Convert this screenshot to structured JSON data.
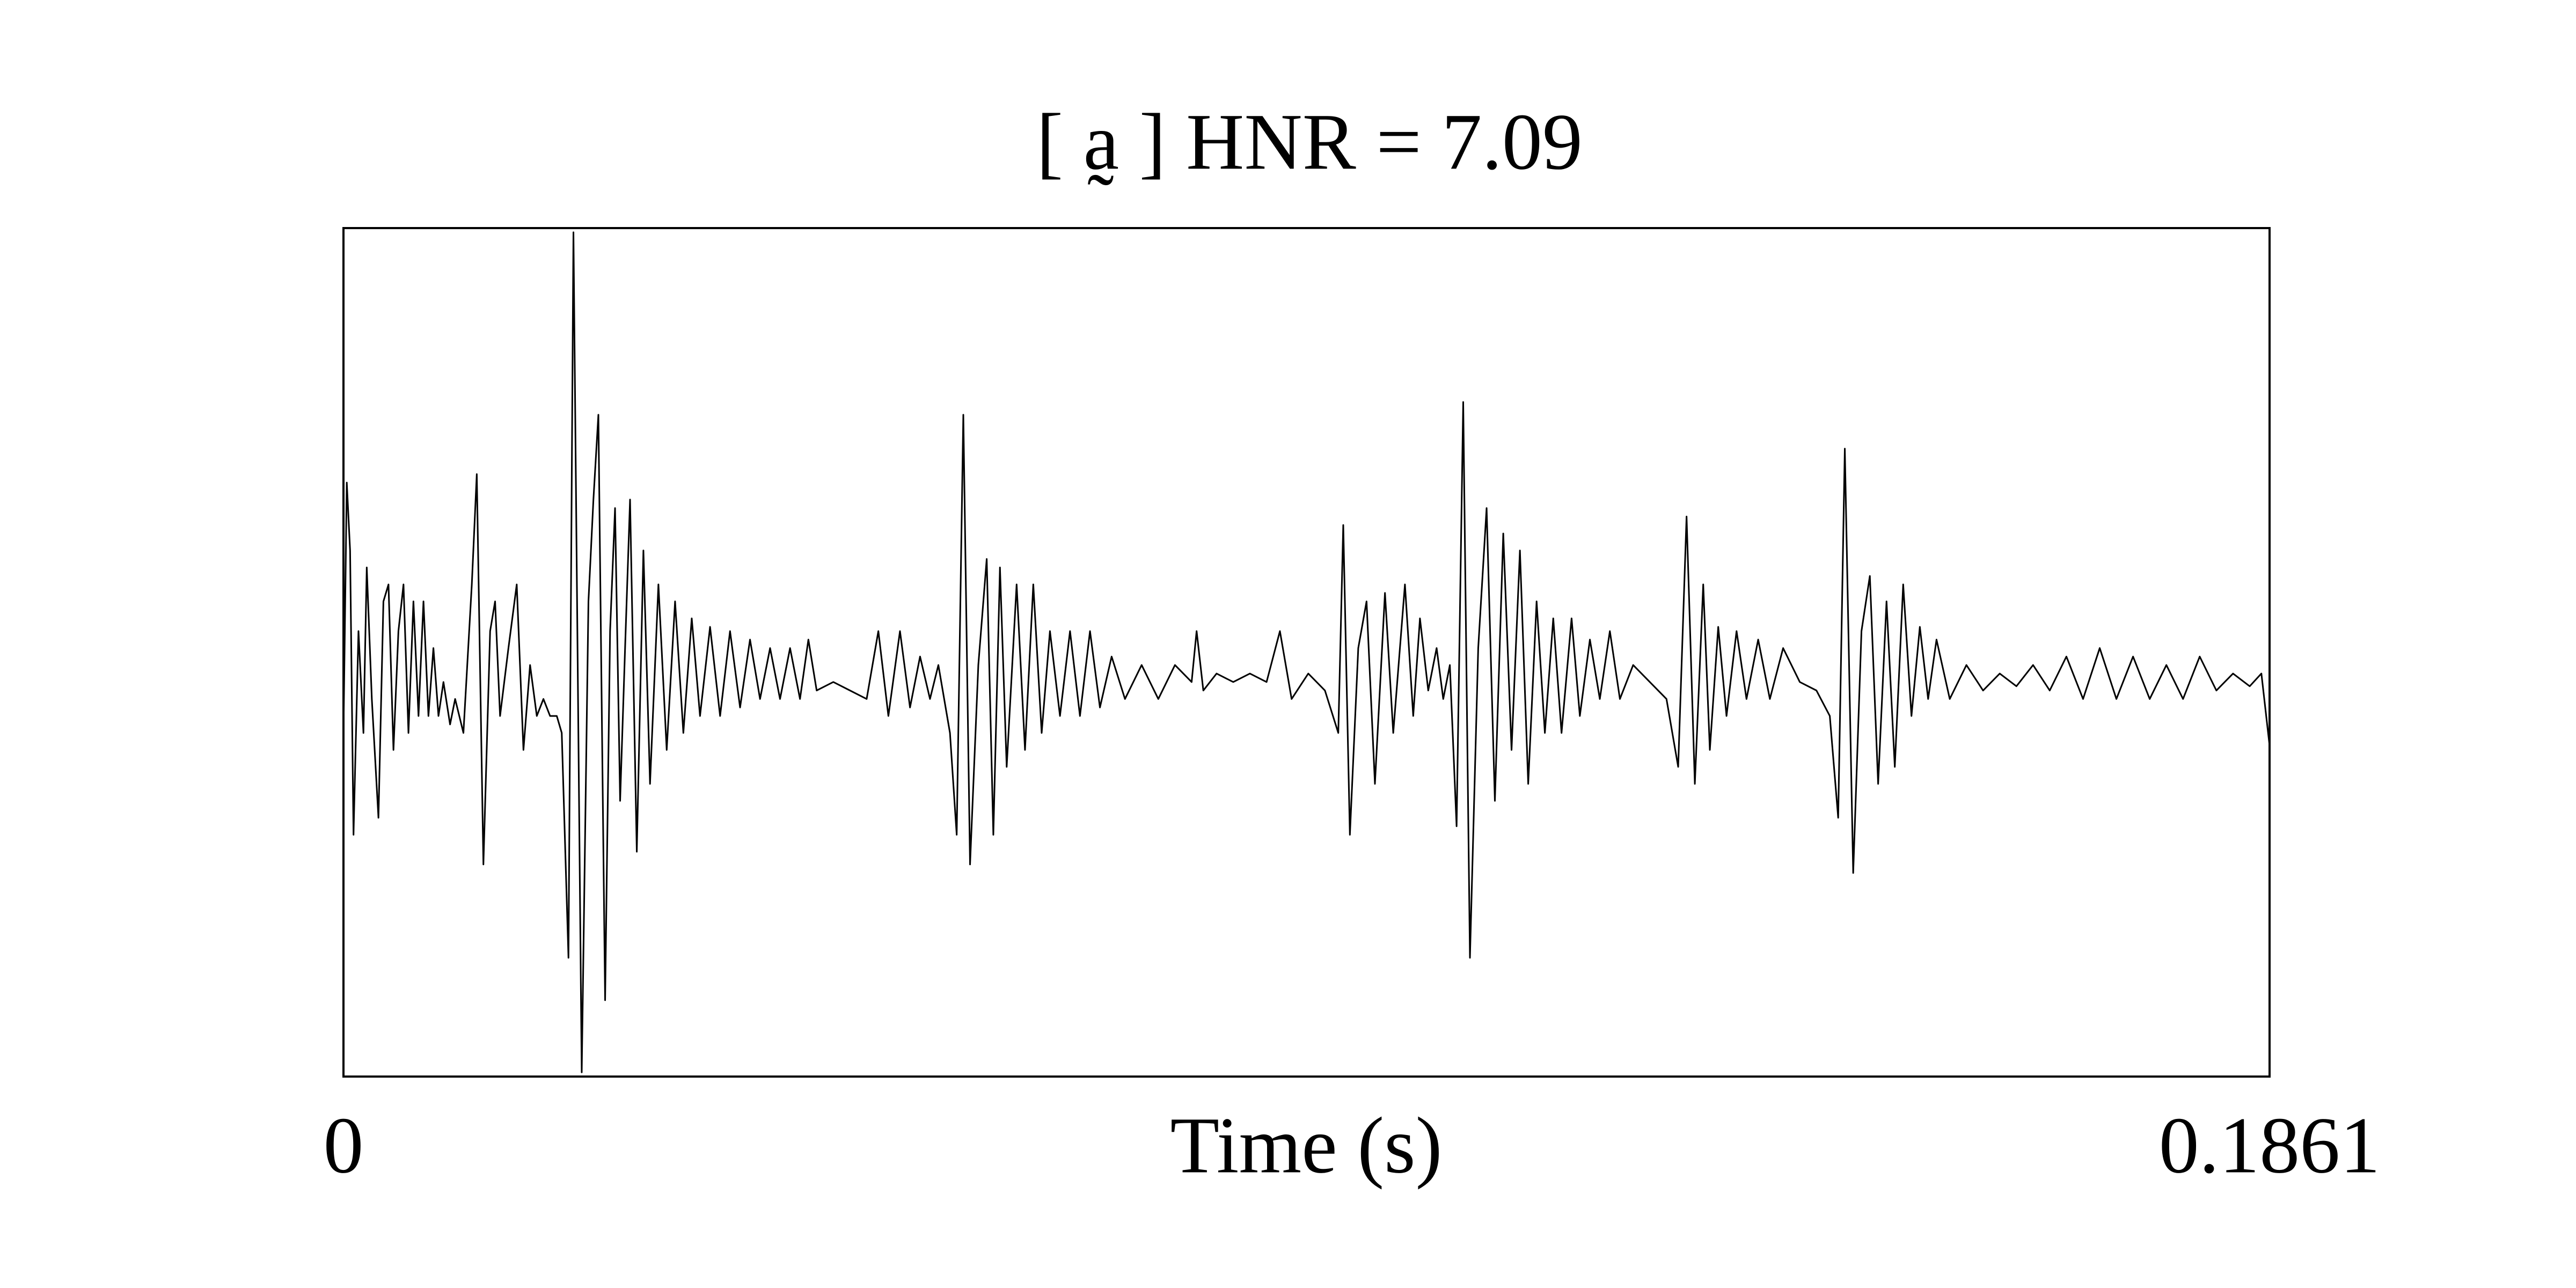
{
  "chart_data": {
    "type": "line",
    "title": "[ a̰ ] HNR = 7.09",
    "x_label": "Time (s)",
    "xlim": [
      0,
      0.1861
    ],
    "xticks": [
      0,
      0.1861
    ],
    "ylim": [
      -1,
      1
    ],
    "color": "#000000",
    "x": [
      0,
      0.00032,
      0.00064,
      0.00097,
      0.00145,
      0.00193,
      0.00225,
      0.00274,
      0.00338,
      0.00386,
      0.00435,
      0.00483,
      0.00531,
      0.0058,
      0.00628,
      0.00676,
      0.00725,
      0.00773,
      0.00821,
      0.00869,
      0.00918,
      0.00966,
      0.0103,
      0.01079,
      0.01159,
      0.0124,
      0.01288,
      0.01352,
      0.01417,
      0.01465,
      0.01513,
      0.01594,
      0.01674,
      0.01739,
      0.01803,
      0.01868,
      0.01932,
      0.01996,
      0.02061,
      0.02109,
      0.02174,
      0.02222,
      0.02302,
      0.02367,
      0.02415,
      0.02463,
      0.02528,
      0.02576,
      0.02624,
      0.02673,
      0.02721,
      0.02769,
      0.02834,
      0.02898,
      0.02962,
      0.03043,
      0.03123,
      0.03204,
      0.03284,
      0.03365,
      0.03445,
      0.03542,
      0.03639,
      0.03735,
      0.03832,
      0.03928,
      0.04025,
      0.04122,
      0.04218,
      0.04315,
      0.04411,
      0.04492,
      0.04572,
      0.04733,
      0.04894,
      0.05055,
      0.05168,
      0.05265,
      0.05377,
      0.05474,
      0.05571,
      0.05667,
      0.05748,
      0.0586,
      0.05925,
      0.05989,
      0.06054,
      0.06134,
      0.06215,
      0.06279,
      0.06343,
      0.06408,
      0.06504,
      0.06585,
      0.06665,
      0.06746,
      0.06826,
      0.06923,
      0.0702,
      0.07116,
      0.07213,
      0.07309,
      0.07422,
      0.07551,
      0.07712,
      0.07873,
      0.08034,
      0.08195,
      0.08243,
      0.08308,
      0.08436,
      0.08597,
      0.08758,
      0.08919,
      0.09048,
      0.09161,
      0.09322,
      0.09483,
      0.09612,
      0.0966,
      0.09724,
      0.09805,
      0.09885,
      0.09966,
      0.10063,
      0.10143,
      0.10256,
      0.10336,
      0.10401,
      0.10481,
      0.10562,
      0.10626,
      0.1069,
      0.10755,
      0.10819,
      0.10884,
      0.10964,
      0.11045,
      0.11125,
      0.11206,
      0.11286,
      0.11367,
      0.11447,
      0.11528,
      0.11608,
      0.11689,
      0.11769,
      0.11866,
      0.11946,
      0.12043,
      0.12139,
      0.12236,
      0.12333,
      0.12461,
      0.12622,
      0.12783,
      0.12896,
      0.12977,
      0.13057,
      0.13138,
      0.13202,
      0.13283,
      0.13363,
      0.1346,
      0.13556,
      0.13669,
      0.13782,
      0.1391,
      0.14071,
      0.14232,
      0.14361,
      0.14442,
      0.14506,
      0.14587,
      0.14667,
      0.14748,
      0.14828,
      0.14909,
      0.14989,
      0.1507,
      0.1515,
      0.15231,
      0.15311,
      0.15392,
      0.1552,
      0.15681,
      0.15842,
      0.16003,
      0.16164,
      0.16325,
      0.16486,
      0.16647,
      0.16808,
      0.16969,
      0.1713,
      0.17291,
      0.17452,
      0.17613,
      0.17774,
      0.17935,
      0.18096,
      0.18257,
      0.18418,
      0.18531,
      0.1861
    ],
    "values": [
      -0.19,
      0.4,
      0.24,
      -0.43,
      0.05,
      -0.19,
      0.2,
      -0.11,
      -0.39,
      0.12,
      0.16,
      -0.23,
      0.05,
      0.16,
      -0.19,
      0.12,
      -0.15,
      0.12,
      -0.15,
      0.01,
      -0.15,
      -0.07,
      -0.17,
      -0.11,
      -0.19,
      0.16,
      0.42,
      -0.5,
      0.05,
      0.12,
      -0.15,
      0.01,
      0.16,
      -0.23,
      -0.03,
      -0.15,
      -0.11,
      -0.15,
      -0.15,
      -0.19,
      -0.72,
      0.99,
      -0.99,
      0.12,
      0.36,
      0.56,
      -0.82,
      0.05,
      0.34,
      -0.35,
      0.01,
      0.36,
      -0.47,
      0.24,
      -0.31,
      0.16,
      -0.23,
      0.12,
      -0.19,
      0.08,
      -0.15,
      0.06,
      -0.15,
      0.05,
      -0.13,
      0.03,
      -0.11,
      0.01,
      -0.11,
      0.01,
      -0.11,
      0.03,
      -0.09,
      -0.07,
      -0.09,
      -0.11,
      0.05,
      -0.15,
      0.05,
      -0.13,
      -0.01,
      -0.11,
      -0.03,
      -0.19,
      -0.43,
      0.56,
      -0.5,
      -0.03,
      0.22,
      -0.43,
      0.2,
      -0.27,
      0.16,
      -0.23,
      0.16,
      -0.19,
      0.05,
      -0.15,
      0.05,
      -0.15,
      0.05,
      -0.13,
      -0.01,
      -0.11,
      -0.03,
      -0.11,
      -0.03,
      -0.07,
      0.05,
      -0.09,
      -0.05,
      -0.07,
      -0.05,
      -0.07,
      0.05,
      -0.11,
      -0.05,
      -0.09,
      -0.19,
      0.3,
      -0.43,
      0.01,
      0.12,
      -0.31,
      0.14,
      -0.19,
      0.16,
      -0.15,
      0.08,
      -0.09,
      0.01,
      -0.11,
      -0.03,
      -0.41,
      0.59,
      -0.72,
      0.01,
      0.34,
      -0.35,
      0.28,
      -0.23,
      0.24,
      -0.31,
      0.12,
      -0.19,
      0.08,
      -0.19,
      0.08,
      -0.15,
      0.03,
      -0.11,
      0.05,
      -0.11,
      -0.03,
      -0.07,
      -0.11,
      -0.27,
      0.32,
      -0.31,
      0.16,
      -0.23,
      0.06,
      -0.15,
      0.05,
      -0.11,
      0.03,
      -0.11,
      0.01,
      -0.07,
      -0.09,
      -0.15,
      -0.39,
      0.48,
      -0.52,
      0.05,
      0.18,
      -0.31,
      0.12,
      -0.27,
      0.16,
      -0.15,
      0.06,
      -0.11,
      0.03,
      -0.11,
      -0.03,
      -0.09,
      -0.05,
      -0.08,
      -0.03,
      -0.09,
      -0.01,
      -0.11,
      0.01,
      -0.11,
      -0.01,
      -0.11,
      -0.03,
      -0.11,
      -0.01,
      -0.09,
      -0.05,
      -0.08,
      -0.05,
      -0.22
    ]
  }
}
